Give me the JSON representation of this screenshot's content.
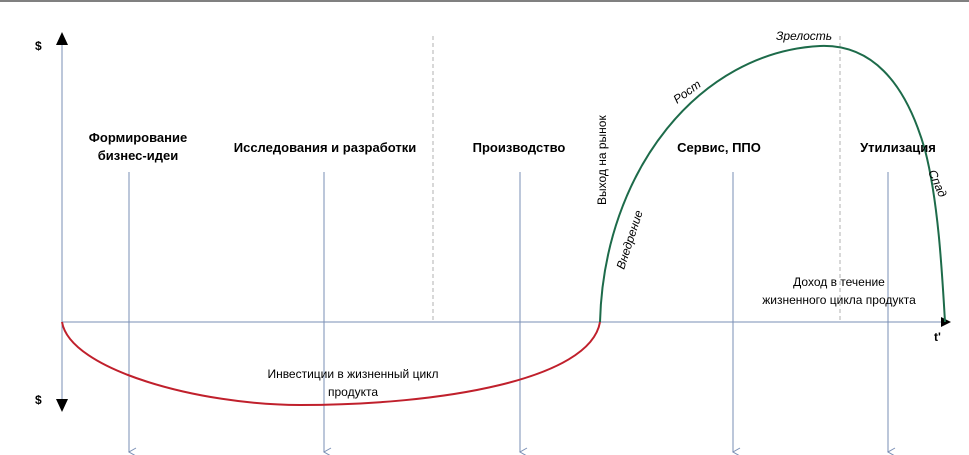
{
  "axes": {
    "y_top_label": "$",
    "y_bottom_label": "$",
    "x_label": "t'"
  },
  "phases": [
    {
      "line1": "Формирование",
      "line2": "бизнес-идеи"
    },
    {
      "line1": "Исследования и разработки",
      "line2": ""
    },
    {
      "line1": "Производство",
      "line2": ""
    },
    {
      "line1": "Сервис, ППО",
      "line2": ""
    },
    {
      "line1": "Утилизация",
      "line2": ""
    }
  ],
  "market_entry": "Выход на рынок",
  "stages": {
    "introduction": "Внедрение",
    "growth": "Рост",
    "maturity": "Зрелость",
    "decline": "Спад"
  },
  "investment": {
    "line1": "Инвестиции в жизненный цикл",
    "line2": "продукта"
  },
  "income": {
    "line1": "Доход в течение",
    "line2": "жизненного цикла продукта"
  },
  "colors": {
    "investment_curve": "#c0202c",
    "income_curve": "#1d6b4a",
    "guide_lines": "#7a8fb5",
    "axis": "#000000"
  }
}
